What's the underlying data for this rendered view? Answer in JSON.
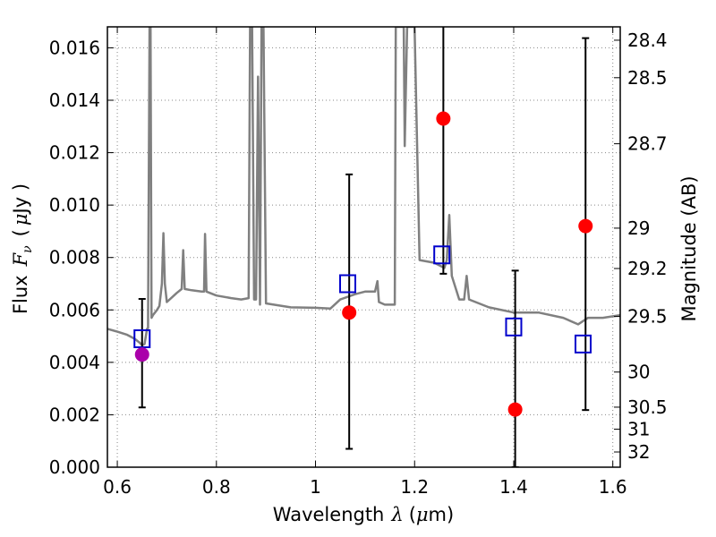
{
  "chart_data": {
    "type": "scatter",
    "xlabel": "Wavelength",
    "xlabel_symbol": "λ",
    "xlabel_unit_prefix": "(",
    "xlabel_unit_mu": "μ",
    "xlabel_unit_suffix": "m)",
    "ylabel": "Flux",
    "ylabel_symbol": "F",
    "ylabel_subscript": "ν",
    "ylabel_unit_prefix": "(",
    "ylabel_unit_mu": "μ",
    "ylabel_unit_suffix": "Jy )",
    "y2label": "Magnitude (AB)",
    "xlim": [
      0.58,
      1.615
    ],
    "ylim": [
      0.0,
      0.0168
    ],
    "grid": true,
    "grid_style": "dotted",
    "x_ticks": [
      {
        "value": 0.6,
        "label": "0.6"
      },
      {
        "value": 0.8,
        "label": "0.8"
      },
      {
        "value": 1.0,
        "label": "1"
      },
      {
        "value": 1.2,
        "label": "1.2"
      },
      {
        "value": 1.4,
        "label": "1.4"
      },
      {
        "value": 1.6,
        "label": "1.6"
      }
    ],
    "y_ticks": [
      {
        "value": 0.0,
        "label": "0.000"
      },
      {
        "value": 0.002,
        "label": "0.002"
      },
      {
        "value": 0.004,
        "label": "0.004"
      },
      {
        "value": 0.006,
        "label": "0.006"
      },
      {
        "value": 0.008,
        "label": "0.008"
      },
      {
        "value": 0.01,
        "label": "0.010"
      },
      {
        "value": 0.012,
        "label": "0.012"
      },
      {
        "value": 0.014,
        "label": "0.014"
      },
      {
        "value": 0.016,
        "label": "0.016"
      }
    ],
    "y2_ticks": [
      {
        "flux": 0.01629,
        "label": "28.4"
      },
      {
        "flux": 0.01486,
        "label": "28.5"
      },
      {
        "flux": 0.01234,
        "label": "28.7"
      },
      {
        "flux": 0.00912,
        "label": "29"
      },
      {
        "flux": 0.00758,
        "label": "29.2"
      },
      {
        "flux": 0.00575,
        "label": "29.5"
      },
      {
        "flux": 0.00363,
        "label": "30"
      },
      {
        "flux": 0.00229,
        "label": "30.5"
      },
      {
        "flux": 0.00145,
        "label": "31"
      },
      {
        "flux": 0.00058,
        "label": "32"
      }
    ],
    "colors": {
      "template": "#808080",
      "model": "#0000cc",
      "observed": "#ff0000",
      "first_point": "#aa00aa",
      "error_bar": "#000000",
      "grid": "#888888"
    },
    "series": [
      {
        "name": "template spectrum",
        "kind": "line",
        "points": [
          [
            0.58,
            0.00528
          ],
          [
            0.6,
            0.00517
          ],
          [
            0.62,
            0.00505
          ],
          [
            0.635,
            0.0049
          ],
          [
            0.645,
            0.00475
          ],
          [
            0.65,
            0.00465
          ],
          [
            0.655,
            0.0047
          ],
          [
            0.66,
            0.00528
          ],
          [
            0.662,
            0.0053
          ],
          [
            0.665,
            0.0168
          ],
          [
            0.667,
            0.0168
          ],
          [
            0.669,
            0.0057
          ],
          [
            0.672,
            0.0058
          ],
          [
            0.68,
            0.006
          ],
          [
            0.685,
            0.00615
          ],
          [
            0.69,
            0.007
          ],
          [
            0.693,
            0.00893
          ],
          [
            0.696,
            0.007
          ],
          [
            0.7,
            0.0063
          ],
          [
            0.72,
            0.00665
          ],
          [
            0.73,
            0.0068
          ],
          [
            0.733,
            0.00828
          ],
          [
            0.736,
            0.0068
          ],
          [
            0.75,
            0.00675
          ],
          [
            0.77,
            0.0067
          ],
          [
            0.775,
            0.0067
          ],
          [
            0.777,
            0.0089
          ],
          [
            0.78,
            0.0067
          ],
          [
            0.8,
            0.00655
          ],
          [
            0.83,
            0.00645
          ],
          [
            0.85,
            0.0064
          ],
          [
            0.865,
            0.00645
          ],
          [
            0.868,
            0.0168
          ],
          [
            0.872,
            0.0168
          ],
          [
            0.876,
            0.0064
          ],
          [
            0.88,
            0.0064
          ],
          [
            0.884,
            0.0149
          ],
          [
            0.888,
            0.0062
          ],
          [
            0.891,
            0.0168
          ],
          [
            0.895,
            0.0168
          ],
          [
            0.9,
            0.00625
          ],
          [
            0.95,
            0.0061
          ],
          [
            1.0,
            0.00608
          ],
          [
            1.03,
            0.00605
          ],
          [
            1.05,
            0.0064
          ],
          [
            1.08,
            0.0066
          ],
          [
            1.1,
            0.0067
          ],
          [
            1.12,
            0.0067
          ],
          [
            1.125,
            0.0071
          ],
          [
            1.128,
            0.0063
          ],
          [
            1.14,
            0.0062
          ],
          [
            1.16,
            0.0062
          ],
          [
            1.162,
            0.0168
          ],
          [
            1.178,
            0.0168
          ],
          [
            1.18,
            0.01225
          ],
          [
            1.185,
            0.0168
          ],
          [
            1.2,
            0.0168
          ],
          [
            1.21,
            0.0079
          ],
          [
            1.24,
            0.0078
          ],
          [
            1.26,
            0.0076
          ],
          [
            1.265,
            0.0079
          ],
          [
            1.27,
            0.00962
          ],
          [
            1.275,
            0.0073
          ],
          [
            1.29,
            0.0064
          ],
          [
            1.3,
            0.0064
          ],
          [
            1.305,
            0.0073
          ],
          [
            1.31,
            0.0064
          ],
          [
            1.35,
            0.0061
          ],
          [
            1.4,
            0.0059
          ],
          [
            1.45,
            0.0059
          ],
          [
            1.5,
            0.0057
          ],
          [
            1.53,
            0.00545
          ],
          [
            1.55,
            0.0057
          ],
          [
            1.58,
            0.0057
          ],
          [
            1.615,
            0.0058
          ]
        ]
      },
      {
        "name": "model photometry",
        "kind": "open-square",
        "points": [
          [
            0.65,
            0.0049
          ],
          [
            1.065,
            0.007
          ],
          [
            1.255,
            0.0081
          ],
          [
            1.4,
            0.00535
          ],
          [
            1.54,
            0.0047
          ]
        ]
      },
      {
        "name": "observed photometry",
        "kind": "filled-circle",
        "points": [
          {
            "x": 0.65,
            "y": 0.0043,
            "err_low": 0.00228,
            "err_high": 0.00642,
            "color": "first_point"
          },
          {
            "x": 1.068,
            "y": 0.0059,
            "err_low": 0.0007,
            "err_high": 0.01117
          },
          {
            "x": 1.258,
            "y": 0.0133,
            "err_low": 0.00738,
            "err_high": 0.0168
          },
          {
            "x": 1.403,
            "y": 0.0022,
            "err_low": 0.0,
            "err_high": 0.0075
          },
          {
            "x": 1.545,
            "y": 0.0092,
            "err_low": 0.00218,
            "err_high": 0.01637
          }
        ]
      }
    ]
  }
}
